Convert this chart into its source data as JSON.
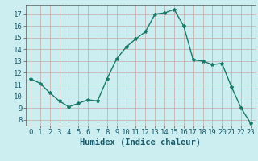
{
  "x": [
    0,
    1,
    2,
    3,
    4,
    5,
    6,
    7,
    8,
    9,
    10,
    11,
    12,
    13,
    14,
    15,
    16,
    17,
    18,
    19,
    20,
    21,
    22,
    23
  ],
  "y": [
    11.5,
    11.1,
    10.3,
    9.6,
    9.1,
    9.4,
    9.7,
    9.6,
    11.5,
    13.2,
    14.2,
    14.9,
    15.5,
    17.0,
    17.1,
    17.4,
    16.0,
    13.1,
    13.0,
    12.7,
    12.8,
    10.8,
    9.0,
    7.7
  ],
  "line_color": "#1a7a6a",
  "marker": "*",
  "marker_size": 3,
  "xlabel": "Humidex (Indice chaleur)",
  "ylim": [
    7.5,
    17.8
  ],
  "xlim": [
    -0.5,
    23.5
  ],
  "yticks": [
    8,
    9,
    10,
    11,
    12,
    13,
    14,
    15,
    16,
    17
  ],
  "xticks": [
    0,
    1,
    2,
    3,
    4,
    5,
    6,
    7,
    8,
    9,
    10,
    11,
    12,
    13,
    14,
    15,
    16,
    17,
    18,
    19,
    20,
    21,
    22,
    23
  ],
  "bg_color": "#cceef0",
  "grid_color": "#c4a8a8",
  "tick_fontsize": 6.5,
  "label_fontsize": 7.5
}
